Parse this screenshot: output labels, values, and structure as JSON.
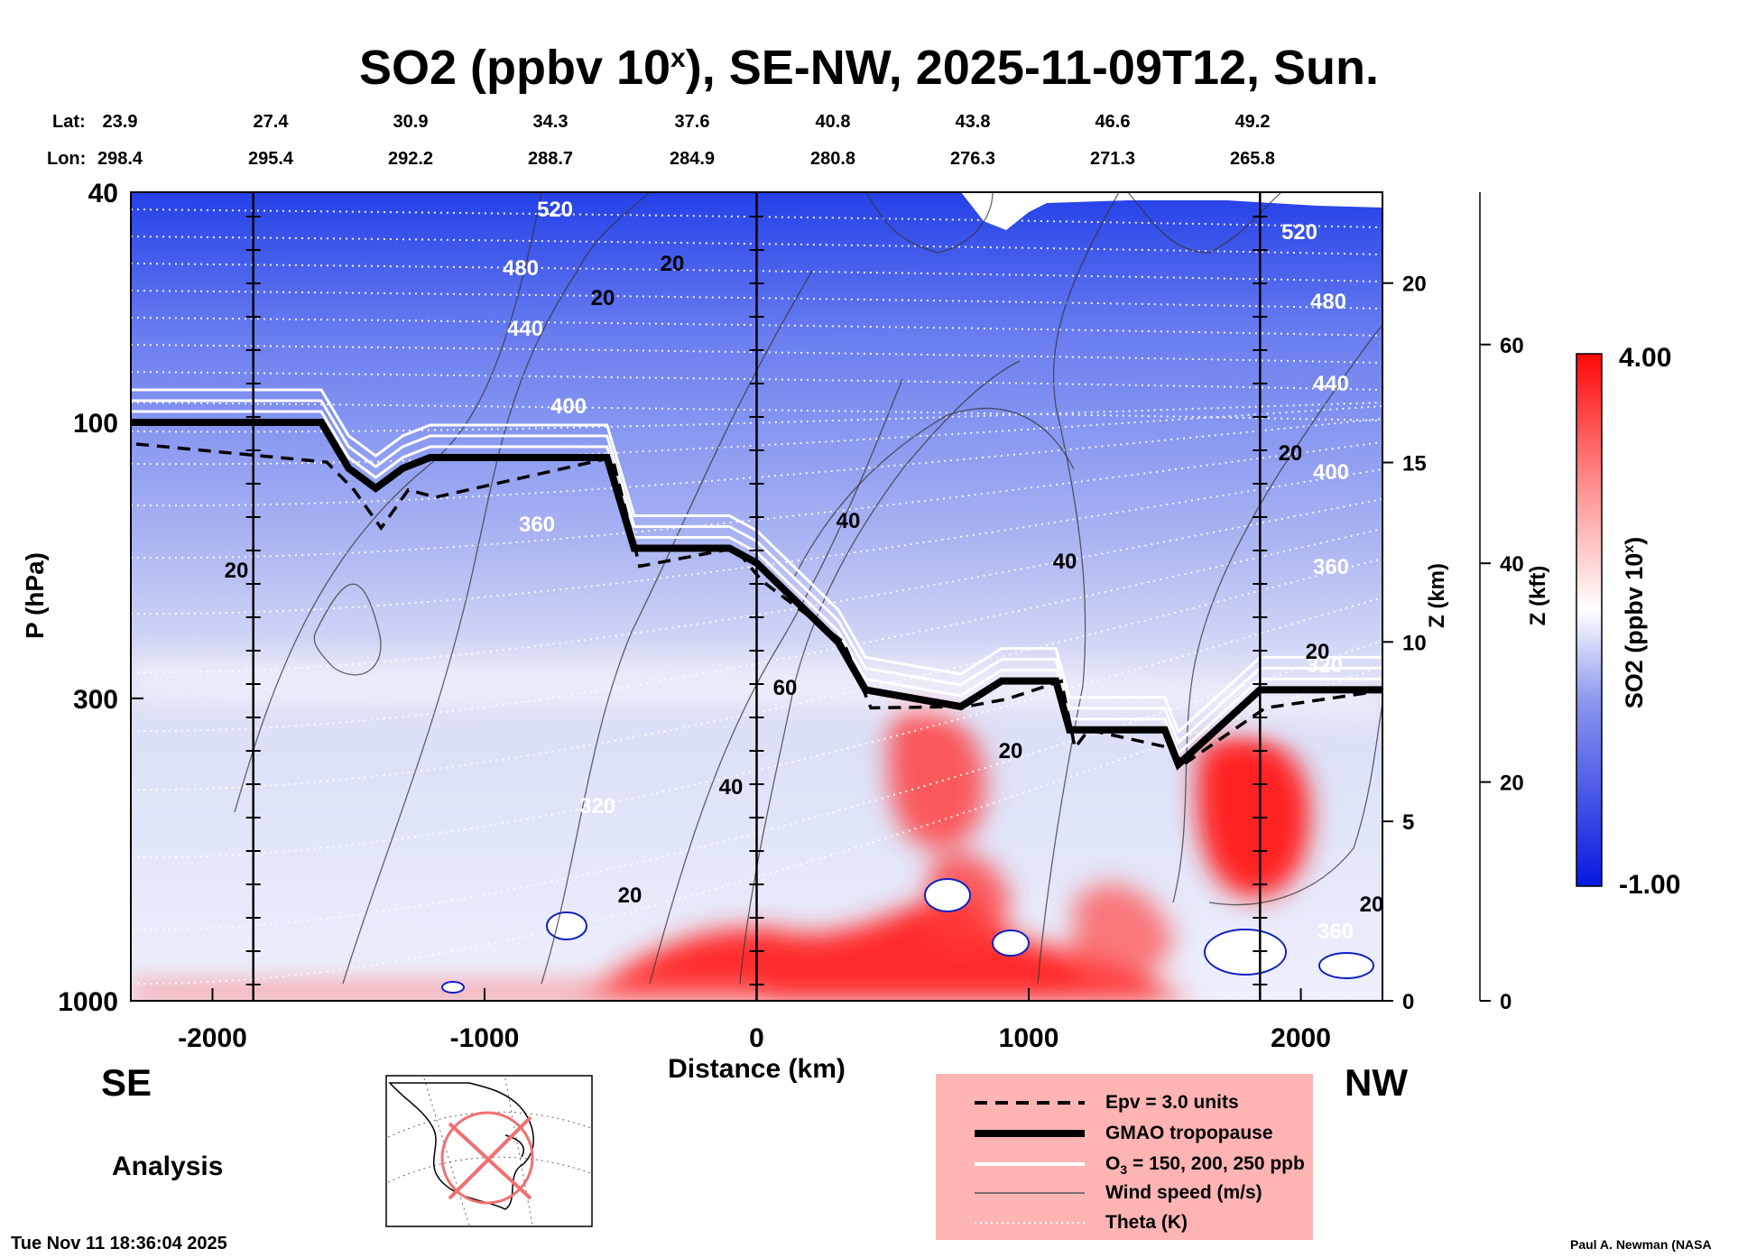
{
  "title": "SO2 (ppbv 10",
  "title_sup": "x",
  "title_rest": "), SE-NW, 2025-11-09T12, Sun.",
  "lat_label": "Lat:",
  "lon_label": "Lon:",
  "lats": [
    "23.9",
    "27.4",
    "30.9",
    "34.3",
    "37.6",
    "40.8",
    "43.8",
    "46.6",
    "49.2"
  ],
  "lons": [
    "298.4",
    "295.4",
    "292.2",
    "288.7",
    "284.9",
    "280.8",
    "276.3",
    "271.3",
    "265.8"
  ],
  "direction_left": "SE",
  "direction_right": "NW",
  "analysis_label": "Analysis",
  "timestamp": "Tue Nov 11 18:36:04 2025",
  "credit": "Paul A. Newman (NASA",
  "colorbar": {
    "max_label": "4.00",
    "min_label": "-1.00",
    "label": "SO2 (ppbv 10",
    "label_sup": "x",
    "label_end": ")"
  },
  "legend": {
    "epv": "Epv = 3.0 units",
    "tropopause": "GMAO tropopause",
    "ozone_pre": "O",
    "ozone_sub": "3",
    "ozone_post": " = 150, 200, 250 ppb",
    "wind": "Wind speed (m/s)",
    "theta": "Theta (K)"
  },
  "colors": {
    "low": "#1030e0",
    "mid": "#ffffff",
    "high": "#ff1010",
    "legend_bg": "#ffb4b4"
  },
  "chart_data": {
    "type": "heatmap",
    "xlabel": "Distance (km)",
    "ylabel": "P (hPa)",
    "xlim": [
      -2300,
      2300
    ],
    "ylim": [
      1000,
      40
    ],
    "yscale": "log",
    "x_ticks": [
      "-2000",
      "-1000",
      "0",
      "1000",
      "2000"
    ],
    "y_ticks": [
      "40",
      "100",
      "300",
      "1000"
    ],
    "z_km_label": "Z (km)",
    "z_km_ticks": [
      "0",
      "5",
      "10",
      "15",
      "20"
    ],
    "z_kft_label": "Z (kft)",
    "z_kft_ticks": [
      "0",
      "20",
      "40",
      "60"
    ],
    "theta_labels": [
      "520",
      "480",
      "440",
      "400",
      "360",
      "320",
      "520",
      "480",
      "440",
      "400",
      "360",
      "320",
      "360"
    ],
    "wind_labels": [
      "20",
      "20",
      "20",
      "20",
      "40",
      "60",
      "40",
      "20",
      "20",
      "20",
      "40",
      "20"
    ],
    "tropopause": {
      "x": [
        -2300,
        -1600,
        -1500,
        -1400,
        -1300,
        -1200,
        -550,
        -450,
        -100,
        0,
        300,
        400,
        750,
        900,
        1100,
        1150,
        1200,
        1500,
        1550,
        1850,
        2300
      ],
      "p": [
        100,
        100,
        120,
        130,
        120,
        115,
        115,
        165,
        165,
        175,
        240,
        290,
        310,
        280,
        280,
        340,
        340,
        340,
        390,
        290,
        290
      ]
    },
    "colorbar_range": [
      -1.0,
      4.0
    ],
    "colorbar_unit": "ppbv 10^x"
  }
}
